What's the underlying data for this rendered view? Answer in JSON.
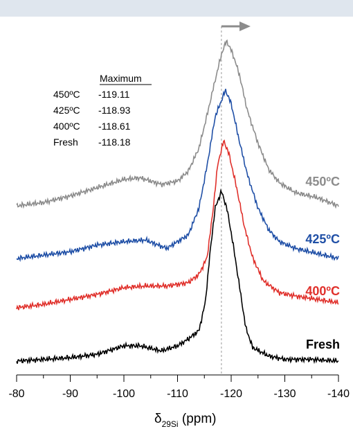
{
  "chart_data": {
    "type": "line",
    "x_label_symbol": "δ",
    "x_label_subscript": "29Si",
    "x_label_unit": " (ppm)",
    "xlim": [
      -80,
      -140
    ],
    "x_ticks": [
      -80,
      -90,
      -100,
      -110,
      -120,
      -130,
      -140
    ],
    "x_tick_labels": [
      "-80",
      "-90",
      "-100",
      "-110",
      "-120",
      "-130",
      "-140"
    ],
    "reference_line_x": -118.18,
    "shift_arrow": "toward more negative ppm",
    "legend": {
      "header": "Maximum",
      "rows": [
        {
          "label": "450ºC",
          "value": "-119.11"
        },
        {
          "label": "425ºC",
          "value": "-118.93"
        },
        {
          "label": "400ºC",
          "value": "-118.61"
        },
        {
          "label": "Fresh",
          "value": "-118.18"
        }
      ]
    },
    "series": [
      {
        "name": "450ºC",
        "color": "#8c8c8c",
        "peak": -119.11,
        "points": [
          [
            -80,
            0.0
          ],
          [
            -85,
            0.02
          ],
          [
            -90,
            0.06
          ],
          [
            -95,
            0.11
          ],
          [
            -100,
            0.16
          ],
          [
            -103,
            0.17
          ],
          [
            -107,
            0.13
          ],
          [
            -110,
            0.15
          ],
          [
            -112,
            0.21
          ],
          [
            -114,
            0.35
          ],
          [
            -115.5,
            0.55
          ],
          [
            -117,
            0.76
          ],
          [
            -118.2,
            0.92
          ],
          [
            -119.11,
            1.0
          ],
          [
            -120.2,
            0.93
          ],
          [
            -121.5,
            0.8
          ],
          [
            -123,
            0.58
          ],
          [
            -125,
            0.38
          ],
          [
            -127,
            0.22
          ],
          [
            -129,
            0.14
          ],
          [
            -132,
            0.08
          ],
          [
            -136,
            0.05
          ],
          [
            -140,
            0.0
          ]
        ]
      },
      {
        "name": "425ºC",
        "color": "#1f4fa6",
        "peak": -118.93,
        "points": [
          [
            -80,
            0.0
          ],
          [
            -85,
            0.02
          ],
          [
            -90,
            0.04
          ],
          [
            -95,
            0.08
          ],
          [
            -100,
            0.1
          ],
          [
            -104,
            0.11
          ],
          [
            -108,
            0.06
          ],
          [
            -110,
            0.1
          ],
          [
            -112,
            0.14
          ],
          [
            -114,
            0.3
          ],
          [
            -115.5,
            0.55
          ],
          [
            -117,
            0.84
          ],
          [
            -118.93,
            1.0
          ],
          [
            -120,
            0.92
          ],
          [
            -121.5,
            0.7
          ],
          [
            -123,
            0.5
          ],
          [
            -125,
            0.3
          ],
          [
            -127,
            0.17
          ],
          [
            -129,
            0.1
          ],
          [
            -132,
            0.06
          ],
          [
            -136,
            0.03
          ],
          [
            -140,
            0.0
          ]
        ]
      },
      {
        "name": "400ºC",
        "color": "#e0302b",
        "peak": -118.61,
        "points": [
          [
            -80,
            0.0
          ],
          [
            -85,
            0.02
          ],
          [
            -90,
            0.05
          ],
          [
            -95,
            0.08
          ],
          [
            -100,
            0.12
          ],
          [
            -104,
            0.13
          ],
          [
            -108,
            0.13
          ],
          [
            -112,
            0.15
          ],
          [
            -114,
            0.2
          ],
          [
            -115.5,
            0.3
          ],
          [
            -116.5,
            0.55
          ],
          [
            -117.5,
            0.86
          ],
          [
            -118.61,
            1.0
          ],
          [
            -119.6,
            0.92
          ],
          [
            -121,
            0.72
          ],
          [
            -122.5,
            0.48
          ],
          [
            -124,
            0.3
          ],
          [
            -126,
            0.16
          ],
          [
            -129,
            0.09
          ],
          [
            -132,
            0.07
          ],
          [
            -136,
            0.05
          ],
          [
            -140,
            0.03
          ]
        ]
      },
      {
        "name": "Fresh",
        "color": "#000000",
        "peak": -118.18,
        "points": [
          [
            -80,
            0.0
          ],
          [
            -85,
            0.01
          ],
          [
            -90,
            0.02
          ],
          [
            -95,
            0.04
          ],
          [
            -100,
            0.09
          ],
          [
            -103,
            0.09
          ],
          [
            -107,
            0.06
          ],
          [
            -110,
            0.09
          ],
          [
            -112,
            0.13
          ],
          [
            -114,
            0.18
          ],
          [
            -115.2,
            0.35
          ],
          [
            -116,
            0.62
          ],
          [
            -117,
            0.9
          ],
          [
            -118.18,
            1.0
          ],
          [
            -119.2,
            0.9
          ],
          [
            -120.3,
            0.7
          ],
          [
            -121.5,
            0.45
          ],
          [
            -122.7,
            0.2
          ],
          [
            -124,
            0.08
          ],
          [
            -127,
            0.03
          ],
          [
            -130,
            0.01
          ],
          [
            -135,
            0.01
          ],
          [
            -140,
            0.0
          ]
        ]
      }
    ]
  }
}
